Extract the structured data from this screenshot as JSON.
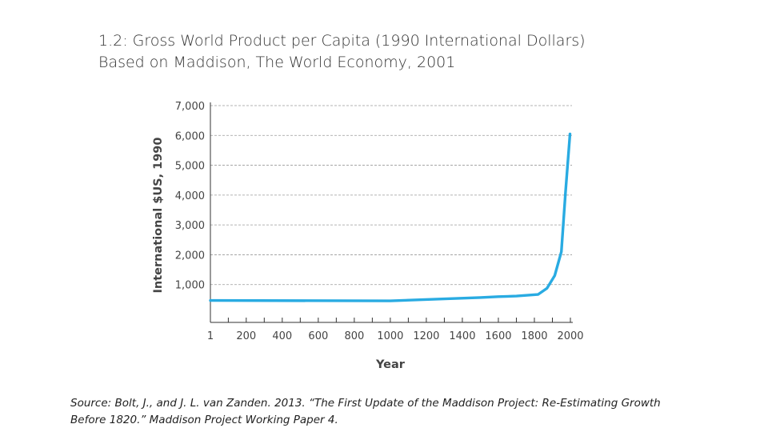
{
  "slide": {
    "title_line1": "1.2: Gross World Product per Capita (1990 International Dollars)",
    "title_line2": "Based on Maddison, The World Economy, 2001",
    "source_line1": "Source: Bolt, J., and J. L. van Zanden. 2013. “The First Update of the Maddison Project: Re-Estimating Growth",
    "source_line2": "Before 1820.” Maddison Project Working Paper 4."
  },
  "chart_data": {
    "type": "line",
    "title": "",
    "xlabel": "Year",
    "ylabel": "International $US, 1990",
    "xlim": [
      1,
      2000
    ],
    "ylim": [
      0,
      7000
    ],
    "x_ticks": [
      1,
      200,
      400,
      600,
      800,
      1000,
      1200,
      1400,
      1600,
      1800,
      2000
    ],
    "x_tick_labels": [
      "1",
      "200",
      "400",
      "600",
      "800",
      "1000",
      "1200",
      "1400",
      "1600",
      "1800",
      "2000"
    ],
    "y_ticks": [
      1000,
      2000,
      3000,
      4000,
      5000,
      6000,
      7000
    ],
    "y_tick_labels": [
      "1,000",
      "2,000",
      "3,000",
      "4,000",
      "5,000",
      "6,000",
      "7,000"
    ],
    "grid": "horizontal-dashed",
    "line_color": "#29abe2",
    "series": [
      {
        "x": [
          1,
          1000,
          1500,
          1600,
          1700,
          1820,
          1870,
          1913,
          1950,
          1973,
          1998
        ],
        "values": [
          467,
          453,
          566,
          596,
          615,
          667,
          875,
          1300,
          2100,
          4100,
          6050
        ]
      }
    ]
  }
}
